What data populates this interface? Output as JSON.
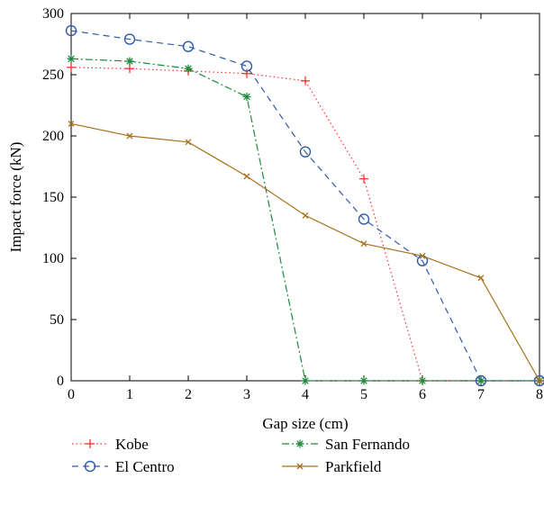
{
  "chart_data": {
    "type": "line",
    "title": "",
    "xlabel": "Gap size (cm)",
    "ylabel": "Impact force (kN)",
    "xlim": [
      0,
      8
    ],
    "ylim": [
      0,
      300
    ],
    "x": [
      0,
      1,
      2,
      3,
      4,
      5,
      6,
      7,
      8
    ],
    "x_ticks": [
      0,
      1,
      2,
      3,
      4,
      5,
      6,
      7,
      8
    ],
    "y_ticks": [
      0,
      50,
      100,
      150,
      200,
      250,
      300
    ],
    "grid": false,
    "legend_position": "bottom",
    "series": [
      {
        "name": "Kobe",
        "values": [
          256,
          255,
          253,
          251,
          245,
          165,
          0,
          0,
          0
        ],
        "color": "#ff3030",
        "line_style": "dotted",
        "marker": "plus"
      },
      {
        "name": "El Centro",
        "values": [
          286,
          279,
          273,
          257,
          187,
          132,
          98,
          0,
          0
        ],
        "color": "#2f5aa8",
        "line_style": "dashed",
        "marker": "circle"
      },
      {
        "name": "San Fernando",
        "values": [
          263,
          261,
          255,
          232,
          0,
          0,
          0,
          0,
          0
        ],
        "color": "#1e8a3c",
        "line_style": "dashdot",
        "marker": "star"
      },
      {
        "name": "Parkfield",
        "values": [
          210,
          200,
          195,
          167,
          135,
          112,
          102,
          84,
          0
        ],
        "color": "#a8701e",
        "line_style": "solid",
        "marker": "x"
      }
    ]
  }
}
